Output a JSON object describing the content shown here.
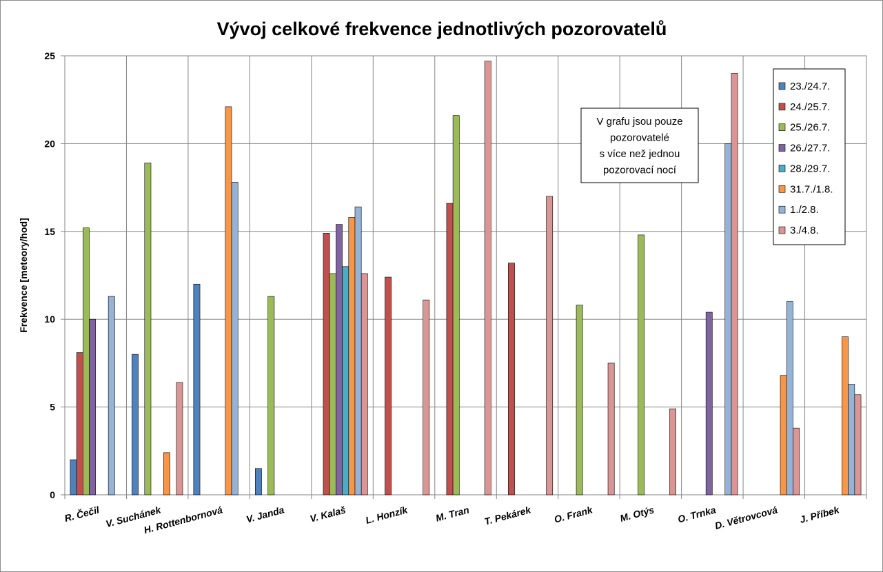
{
  "chart_data": {
    "type": "bar",
    "title": "Vývoj celkové frekvence jednotlivých pozorovatelů",
    "ylabel": "Frekvence [meteory/hod]",
    "xlabel": "",
    "ylim": [
      0,
      25
    ],
    "yticks": [
      "0",
      "5",
      "10",
      "15",
      "20",
      "25"
    ],
    "grid": true,
    "legend_position": "top-right",
    "note": [
      "V grafu jsou pouze",
      "pozorovatelé",
      "s více než jednou",
      "pozorovací nocí"
    ],
    "categories": [
      "R. Čečil",
      "V. Suchánek",
      "H. Rottenbornová",
      "V. Janda",
      "V. Kalaš",
      "L. Honzík",
      "M. Tran",
      "T. Pekárek",
      "O. Frank",
      "M. Otýs",
      "O. Trnka",
      "D. Větrovcová",
      "J. Příbek"
    ],
    "series": [
      {
        "name": "23./24.7.",
        "color": "#4f81bd",
        "values": [
          2.0,
          8.0,
          12.0,
          1.5,
          null,
          null,
          null,
          null,
          null,
          null,
          null,
          null,
          null
        ]
      },
      {
        "name": "24./25.7.",
        "color": "#c0504d",
        "values": [
          8.1,
          null,
          null,
          null,
          14.9,
          12.4,
          16.6,
          13.2,
          null,
          null,
          null,
          null,
          null
        ]
      },
      {
        "name": "25./26.7.",
        "color": "#9bbb59",
        "values": [
          15.2,
          18.9,
          null,
          11.3,
          12.6,
          null,
          21.6,
          null,
          10.8,
          14.8,
          null,
          null,
          null
        ]
      },
      {
        "name": "26./27.7.",
        "color": "#8064a2",
        "values": [
          10.0,
          null,
          null,
          null,
          15.4,
          null,
          null,
          null,
          null,
          null,
          10.4,
          null,
          null
        ]
      },
      {
        "name": "28./29.7.",
        "color": "#4bacc6",
        "values": [
          null,
          null,
          null,
          null,
          13.0,
          null,
          null,
          null,
          null,
          null,
          null,
          null,
          null
        ]
      },
      {
        "name": "31.7./1.8.",
        "color": "#f79646",
        "values": [
          null,
          2.4,
          22.1,
          null,
          15.8,
          null,
          null,
          null,
          null,
          null,
          null,
          6.8,
          9.0
        ]
      },
      {
        "name": "1./2.8.",
        "color": "#95b3d7",
        "values": [
          11.3,
          null,
          17.8,
          null,
          16.4,
          null,
          null,
          null,
          null,
          null,
          20.0,
          11.0,
          6.3
        ]
      },
      {
        "name": "3./4.8.",
        "color": "#d99694",
        "values": [
          null,
          6.4,
          null,
          null,
          12.6,
          11.1,
          24.7,
          17.0,
          7.5,
          4.9,
          24.0,
          3.8,
          5.7
        ]
      }
    ]
  }
}
